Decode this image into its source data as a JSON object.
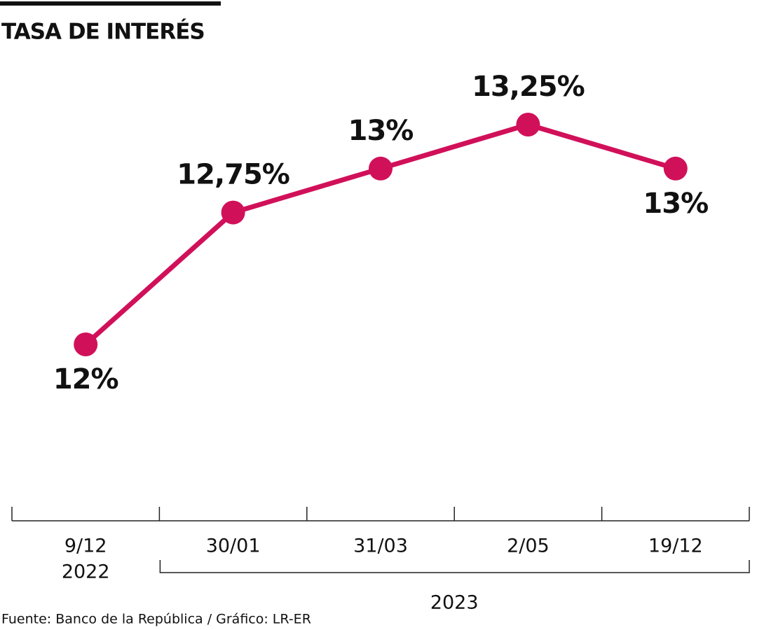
{
  "chart_data": {
    "type": "line",
    "title": "TASA DE INTERÉS",
    "groups": [
      {
        "name": "2022",
        "categories": [
          "9/12"
        ]
      },
      {
        "name": "2023",
        "categories": [
          "30/01",
          "31/03",
          "2/05",
          "19/12"
        ]
      }
    ],
    "values": [
      12,
      12.75,
      13,
      13.25,
      13
    ],
    "value_labels": [
      "12%",
      "12,75%",
      "13%",
      "13,25%",
      "13%"
    ],
    "color": "#d1105a",
    "source": "Fuente: Banco de la República / Gráfico: LR-ER"
  }
}
